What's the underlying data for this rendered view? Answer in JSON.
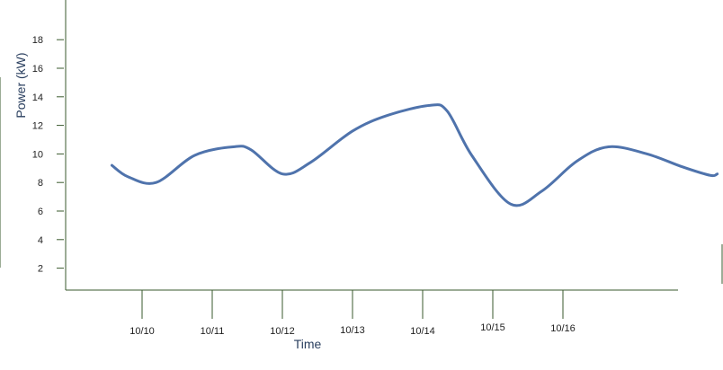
{
  "chart_data": {
    "type": "line",
    "title": "",
    "xlabel": "Time",
    "ylabel": "Power (kW)",
    "ylim": [
      0,
      19
    ],
    "yticks": [
      2,
      4,
      6,
      8,
      10,
      12,
      14,
      16,
      18
    ],
    "x_tick_labels": [
      "10/10",
      "10/11",
      "10/12",
      "10/13",
      "10/14",
      "10/15",
      "10/16"
    ],
    "grid": false,
    "legend": "none",
    "line_color": "#4f73ac",
    "axis_color": "#3a5a2e",
    "series": [
      {
        "points": [
          {
            "x": 9.57,
            "y": 9.2
          },
          {
            "x": 9.8,
            "y": 8.4
          },
          {
            "x": 10.2,
            "y": 8.0
          },
          {
            "x": 10.75,
            "y": 9.9
          },
          {
            "x": 11.3,
            "y": 10.5
          },
          {
            "x": 11.55,
            "y": 10.3
          },
          {
            "x": 12.0,
            "y": 8.6
          },
          {
            "x": 12.4,
            "y": 9.4
          },
          {
            "x": 13.0,
            "y": 11.6
          },
          {
            "x": 13.5,
            "y": 12.7
          },
          {
            "x": 14.1,
            "y": 13.4
          },
          {
            "x": 14.35,
            "y": 13.0
          },
          {
            "x": 14.7,
            "y": 9.9
          },
          {
            "x": 15.25,
            "y": 6.5
          },
          {
            "x": 15.7,
            "y": 7.4
          },
          {
            "x": 16.2,
            "y": 9.5
          },
          {
            "x": 16.65,
            "y": 10.5
          },
          {
            "x": 17.2,
            "y": 10.0
          },
          {
            "x": 17.7,
            "y": 9.1
          },
          {
            "x": 18.1,
            "y": 8.5
          },
          {
            "x": 18.2,
            "y": 8.6
          }
        ]
      }
    ]
  }
}
